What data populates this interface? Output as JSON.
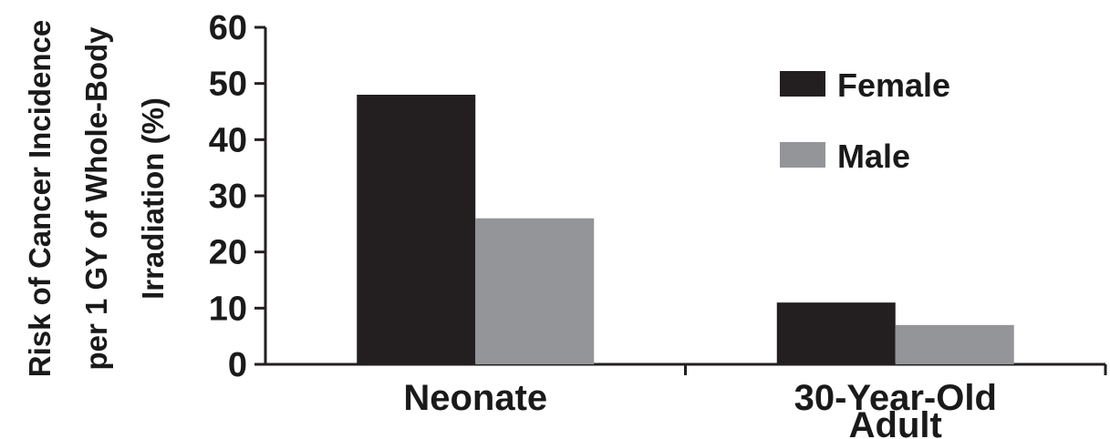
{
  "chart_data": {
    "type": "bar",
    "categories": [
      "Neonate",
      "30-Year-Old Adult"
    ],
    "category_lines": [
      [
        "Neonate"
      ],
      [
        "30-Year-Old",
        "Adult"
      ]
    ],
    "series": [
      {
        "name": "Female",
        "values": [
          48,
          11
        ],
        "color": "#231f20"
      },
      {
        "name": "Male",
        "values": [
          26,
          7
        ],
        "color": "#939598"
      }
    ],
    "ylabel_lines": [
      "Risk of Cancer Incidence",
      "per 1 GY of Whole-Body",
      "Irradiation (%)"
    ],
    "ylabel": "Risk of Cancer Incidence per 1 GY of Whole-Body Irradiation (%)",
    "xlabel": "",
    "ylim": [
      0,
      60
    ],
    "yticks": [
      0,
      10,
      20,
      30,
      40,
      50,
      60
    ],
    "grid": false,
    "legend_position": "top-right"
  }
}
